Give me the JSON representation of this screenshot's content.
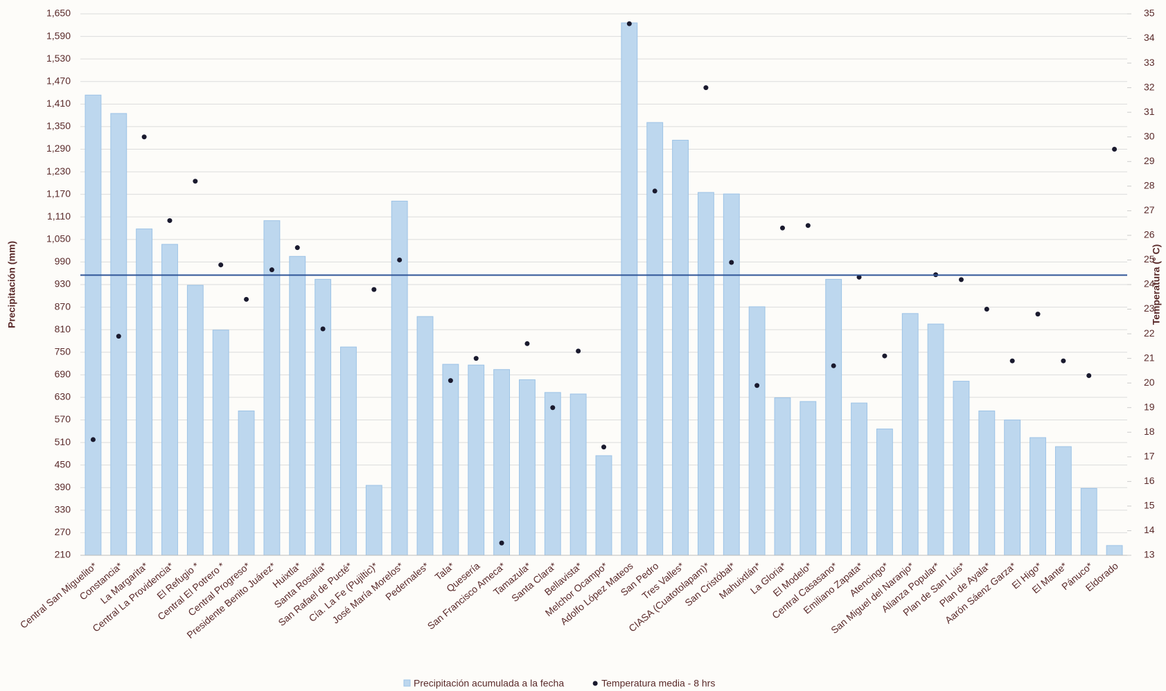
{
  "chart_data": {
    "type": "bar",
    "categories": [
      "Central San Miguelito*",
      "Constancia*",
      "La Margarita*",
      "Central La Providencia*",
      "El Refugio *",
      "Central El Potrero *",
      "Central Progreso*",
      "Presidente Benito Juárez*",
      "Huixtla*",
      "Santa Rosalía*",
      "San Rafael de Pucté*",
      "Cía. La Fe (Pujiltic)*",
      "José María Morelos*",
      "Pedernales*",
      "Tala*",
      "Quesería",
      "San Francisco Ameca*",
      "Tamazula*",
      "Santa Clara*",
      "Bellavista*",
      "Melchor Ocampo*",
      "Adolfo López Mateos",
      "San Pedro",
      "Tres Valles*",
      "CIASA (Cuatotolapam)*",
      "San Cristóbal*",
      "Mahuixtlán*",
      "La Gloria*",
      "El Modelo*",
      "Central Casasano*",
      "Emiliano Zapata*",
      "Atencingo*",
      "San Miguel del Naranjo*",
      "Alianza Popular*",
      "Plan de San Luis*",
      "Plan de Ayala*",
      "Aarón Sáenz Garza*",
      "El Higo*",
      "El Mante*",
      "Pánuco*",
      "Eldorado"
    ],
    "series": [
      {
        "name": "Precipitación acumulada a la fecha",
        "type": "bar",
        "color": "#bdd7ee",
        "values": [
          1434,
          1385,
          1078,
          1037,
          928,
          809,
          594,
          1100,
          1005,
          944,
          764,
          396,
          1152,
          845,
          718,
          716,
          704,
          677,
          643,
          639,
          475,
          1626,
          1361,
          1314,
          1175,
          1171,
          871,
          629,
          619,
          944,
          615,
          546,
          853,
          825,
          673,
          594,
          570,
          523,
          499,
          388,
          236
        ]
      },
      {
        "name": "Temperatura media - 8 hrs",
        "type": "scatter",
        "axis": "y2",
        "color": "#1a1a2e",
        "values": [
          17.7,
          21.9,
          30.0,
          26.6,
          28.2,
          24.8,
          23.4,
          24.6,
          25.5,
          22.2,
          null,
          23.8,
          25.0,
          null,
          20.1,
          21.0,
          13.5,
          21.6,
          19.0,
          21.3,
          17.4,
          34.6,
          27.8,
          null,
          32.0,
          24.9,
          19.9,
          26.3,
          26.4,
          20.7,
          24.3,
          21.1,
          null,
          24.4,
          24.2,
          23.0,
          20.9,
          22.8,
          20.9,
          20.3,
          29.5
        ]
      }
    ],
    "reference_line": {
      "value": 955,
      "color": "#2f5597"
    },
    "ylabel": "Precipitación (mm)",
    "y2label": "Temperatura (° C)",
    "ylim": [
      210,
      1650
    ],
    "yticks": [
      210,
      270,
      330,
      390,
      450,
      510,
      570,
      630,
      690,
      750,
      810,
      870,
      930,
      990,
      {
        "value": 1050,
        "label": "1,050"
      },
      {
        "value": 1110,
        "label": "1,110"
      },
      {
        "value": 1170,
        "label": "1,170"
      },
      {
        "value": 1230,
        "label": "1,230"
      },
      {
        "value": 1290,
        "label": "1,290"
      },
      {
        "value": 1350,
        "label": "1,350"
      },
      {
        "value": 1410,
        "label": "1,410"
      },
      {
        "value": 1470,
        "label": "1,470"
      },
      {
        "value": 1530,
        "label": "1,530"
      },
      {
        "value": 1590,
        "label": "1,590"
      },
      {
        "value": 1650,
        "label": "1,650"
      }
    ],
    "y2lim": [
      13,
      35
    ],
    "y2ticks": [
      13,
      14,
      15,
      16,
      17,
      18,
      19,
      20,
      21,
      22,
      23,
      24,
      25,
      26,
      27,
      28,
      29,
      30,
      31,
      32,
      33,
      34,
      35
    ],
    "grid": true,
    "legend": "bottom"
  }
}
